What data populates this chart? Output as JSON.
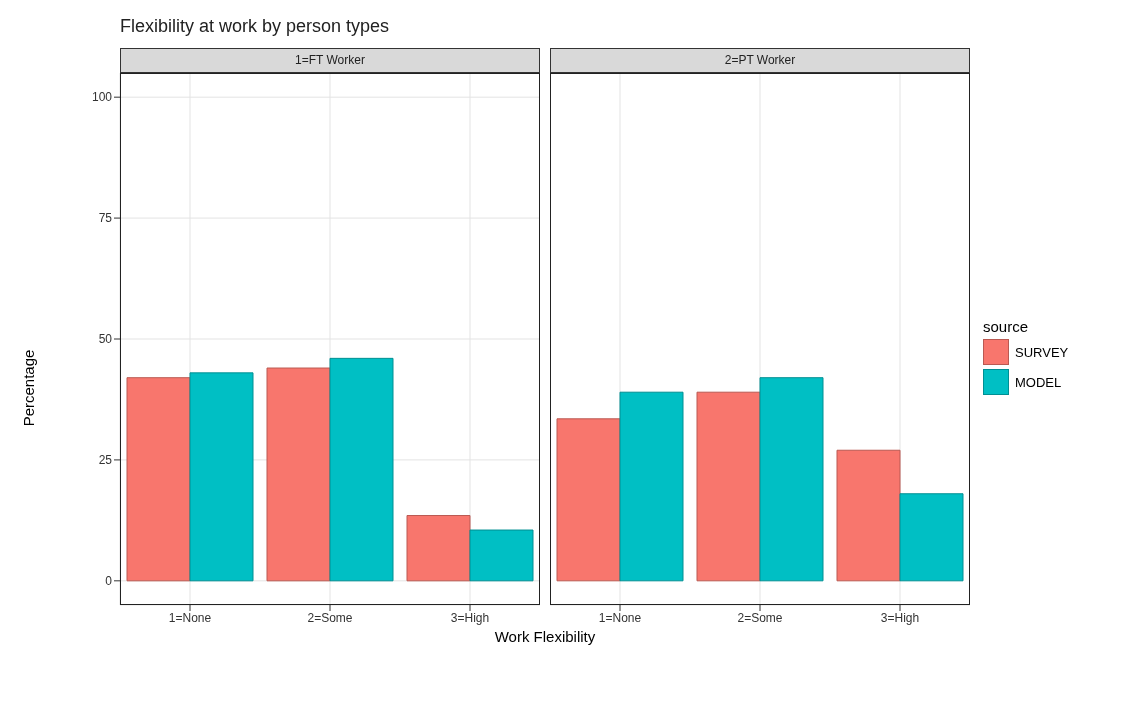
{
  "chart_data": [
    {
      "type": "bar",
      "title": "Flexibility at work by person types",
      "subtitle": "1=FT Worker",
      "xlabel": "Work Flexibility",
      "ylabel": "Percentage",
      "legend_title": "source",
      "legend": "right",
      "grid": true,
      "categories": [
        "1=None",
        "2=Some",
        "3=High"
      ],
      "series": [
        {
          "name": "SURVEY",
          "color": "#f8766d",
          "values": [
            42,
            44,
            13.5
          ]
        },
        {
          "name": "MODEL",
          "color": "#00bfc4",
          "values": [
            43,
            46,
            10.5
          ]
        }
      ],
      "ylim": [
        -5,
        105
      ],
      "yticks": [
        0,
        25,
        50,
        75,
        100
      ]
    },
    {
      "type": "bar",
      "subtitle": "2=PT Worker",
      "grid": true,
      "tick_labels": "x",
      "categories": [
        "1=None",
        "2=Some",
        "3=High"
      ],
      "series": [
        {
          "color": "#f8766d",
          "values": [
            33.5,
            39,
            27
          ]
        },
        {
          "color": "#00bfc4",
          "values": [
            39,
            42,
            18
          ]
        }
      ],
      "ylim": [
        -5,
        105
      ],
      "yticks": [
        0,
        25,
        50,
        75,
        100
      ]
    }
  ]
}
